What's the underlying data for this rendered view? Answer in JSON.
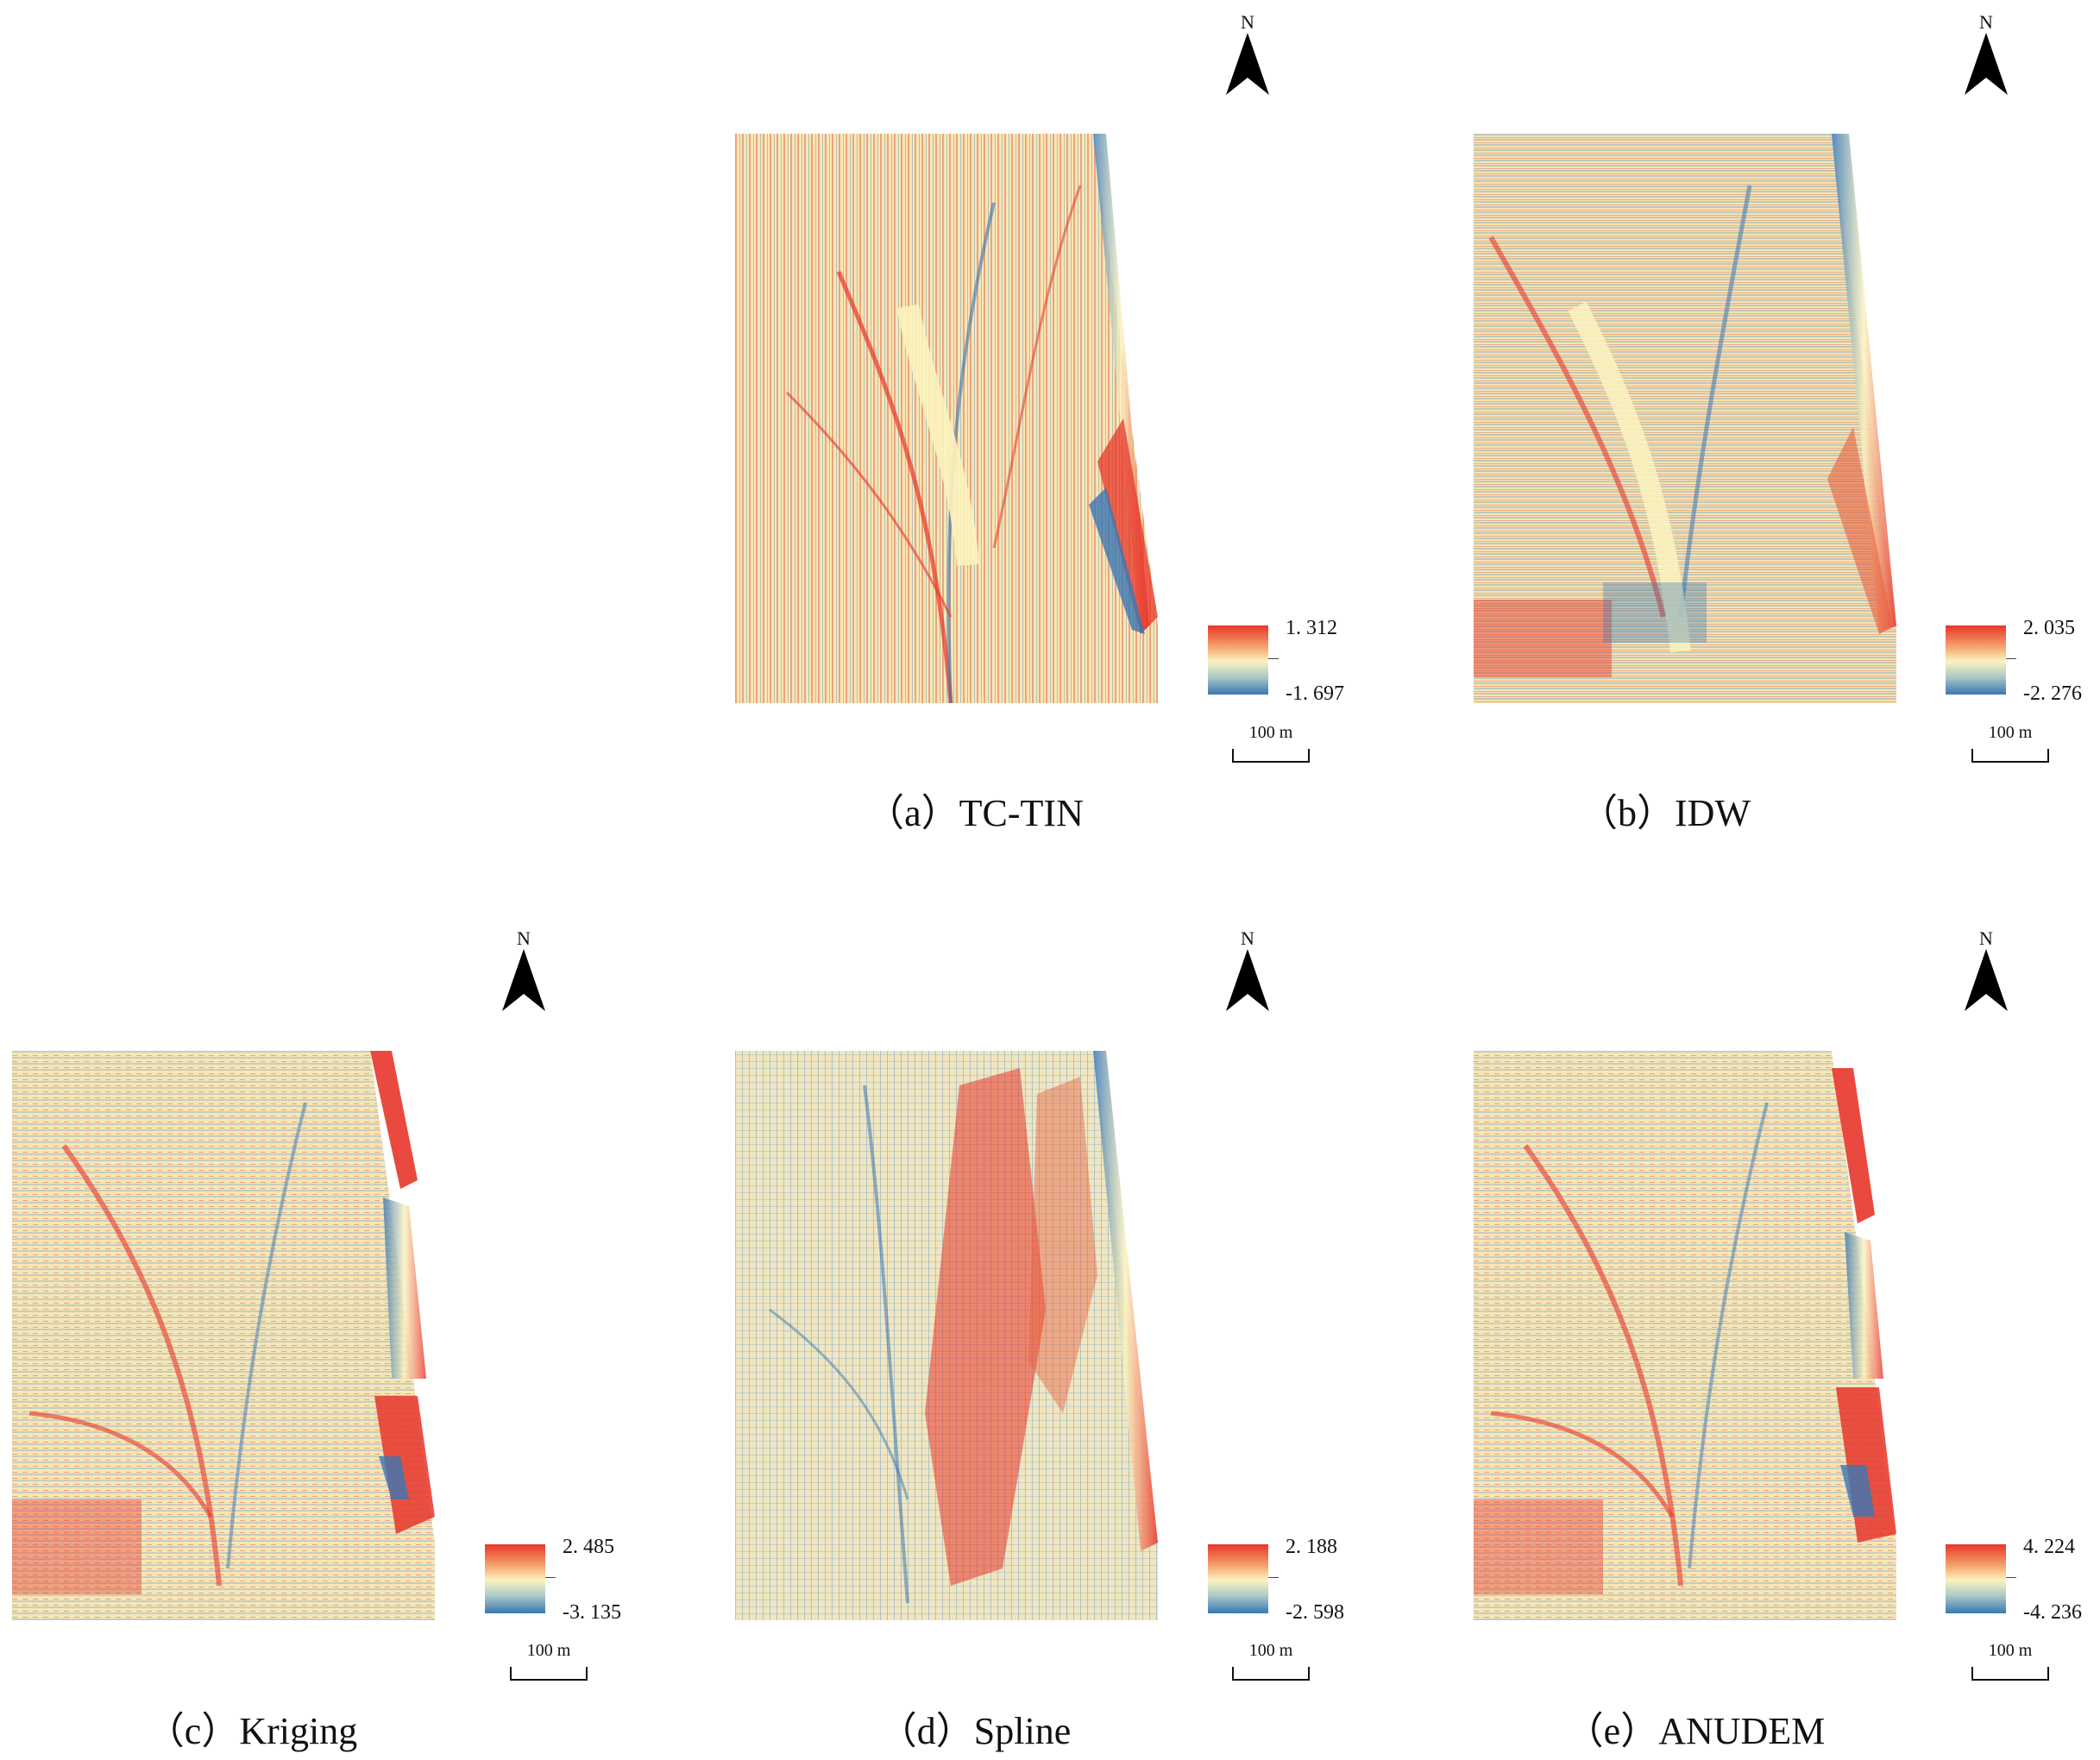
{
  "panels": [
    {
      "id": "a",
      "caption": "（a）TC-TIN",
      "legend_max": "1. 312",
      "legend_min": "-1. 697",
      "scale_label": "100 m",
      "north_label": "N"
    },
    {
      "id": "b",
      "caption": "（b）IDW",
      "legend_max": "2. 035",
      "legend_min": "-2. 276",
      "scale_label": "100 m",
      "north_label": "N"
    },
    {
      "id": "c",
      "caption": "（c）Kriging",
      "legend_max": "2. 485",
      "legend_min": "-3. 135",
      "scale_label": "100 m",
      "north_label": "N"
    },
    {
      "id": "d",
      "caption": "（d）Spline",
      "legend_max": "2. 188",
      "legend_min": "-2. 598",
      "scale_label": "100 m",
      "north_label": "N"
    },
    {
      "id": "e",
      "caption": "（e）ANUDEM",
      "legend_max": "4. 224",
      "legend_min": "-4. 236",
      "scale_label": "100 m",
      "north_label": "N"
    }
  ],
  "colors": {
    "high": "#e8352a",
    "mid": "#fbf3bf",
    "low": "#3a77b4"
  },
  "icons": {
    "north_arrow": "north-arrow-icon"
  }
}
